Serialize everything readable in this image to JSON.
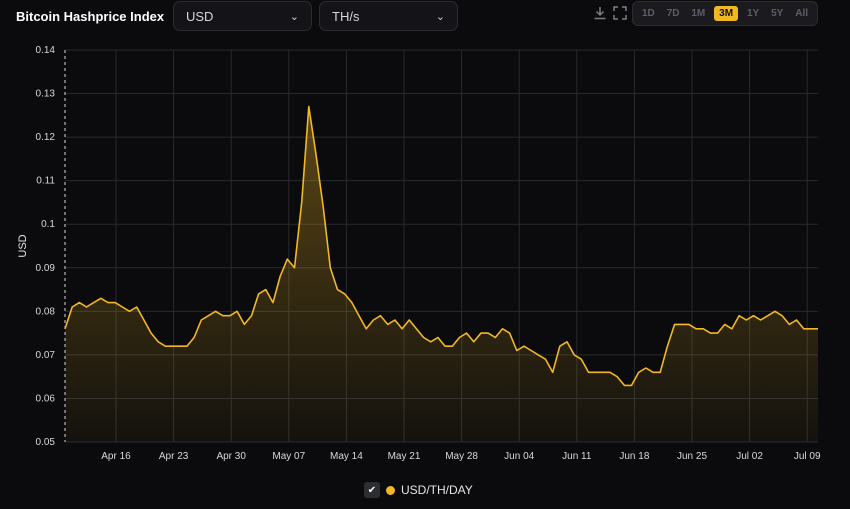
{
  "header": {
    "title": "Bitcoin Hashprice Index",
    "currency_select": {
      "value": "USD"
    },
    "unit_select": {
      "value": "TH/s"
    },
    "ranges": [
      "1D",
      "7D",
      "1M",
      "3M",
      "1Y",
      "5Y",
      "All"
    ],
    "active_range": "3M",
    "icons": [
      "download-icon",
      "fullscreen-icon",
      "chevron-down-icon"
    ]
  },
  "legend": {
    "checked": true,
    "label": "USD/TH/DAY"
  },
  "colors": {
    "accent": "#f2b824",
    "background": "#0b0b0d",
    "grid": "#2a2a2e"
  },
  "chart_data": {
    "type": "area",
    "title": "",
    "ylabel": "USD",
    "xlabel": "",
    "ylim": [
      0.05,
      0.14
    ],
    "yticks": [
      "0.14",
      "0.13",
      "0.12",
      "0.11",
      "0.1",
      "0.09",
      "0.08",
      "0.07",
      "0.06",
      "0.05"
    ],
    "xticks": [
      "Apr 16",
      "Apr 23",
      "Apr 30",
      "May 07",
      "May 14",
      "May 21",
      "May 28",
      "Jun 04",
      "Jun 11",
      "Jun 18",
      "Jun 25",
      "Jul 02",
      "Jul 09"
    ],
    "grid": true,
    "series": [
      {
        "name": "USD/TH/DAY",
        "values": [
          0.076,
          0.081,
          0.082,
          0.081,
          0.082,
          0.083,
          0.082,
          0.082,
          0.081,
          0.08,
          0.081,
          0.078,
          0.075,
          0.073,
          0.072,
          0.072,
          0.072,
          0.072,
          0.074,
          0.078,
          0.079,
          0.08,
          0.079,
          0.079,
          0.08,
          0.077,
          0.079,
          0.084,
          0.085,
          0.082,
          0.088,
          0.092,
          0.09,
          0.105,
          0.127,
          0.116,
          0.104,
          0.09,
          0.085,
          0.084,
          0.082,
          0.079,
          0.076,
          0.078,
          0.079,
          0.077,
          0.078,
          0.076,
          0.078,
          0.076,
          0.074,
          0.073,
          0.074,
          0.072,
          0.072,
          0.074,
          0.075,
          0.073,
          0.075,
          0.075,
          0.074,
          0.076,
          0.075,
          0.071,
          0.072,
          0.071,
          0.07,
          0.069,
          0.066,
          0.072,
          0.073,
          0.07,
          0.069,
          0.066,
          0.066,
          0.066,
          0.066,
          0.065,
          0.063,
          0.063,
          0.066,
          0.067,
          0.066,
          0.066,
          0.072,
          0.077,
          0.077,
          0.077,
          0.076,
          0.076,
          0.075,
          0.075,
          0.077,
          0.076,
          0.079,
          0.078,
          0.079,
          0.078,
          0.079,
          0.08,
          0.079,
          0.077,
          0.078,
          0.076,
          0.076,
          0.076
        ]
      }
    ]
  }
}
